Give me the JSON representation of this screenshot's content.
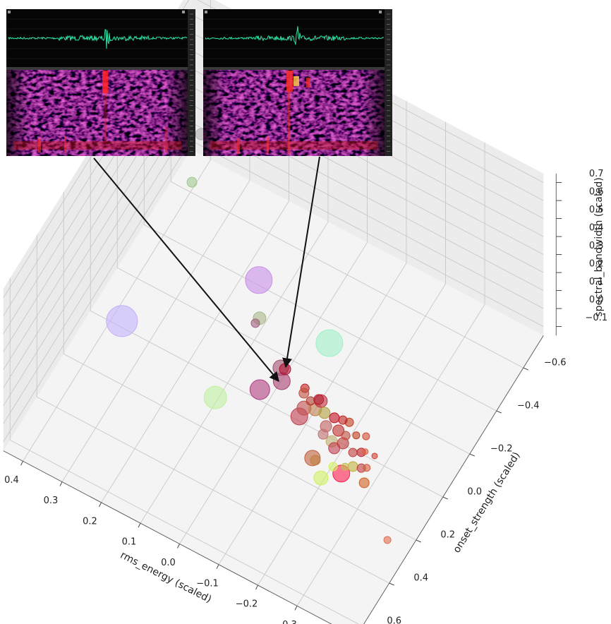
{
  "chart_data": {
    "type": "scatter3d",
    "x_label": "rms_energy (scaled)",
    "y_label": "onset_strength (scaled)",
    "z_label": "spectral_bandwidth (scaled)",
    "xlim": [
      -0.45,
      0.45
    ],
    "ylim": [
      -0.75,
      0.65
    ],
    "zlim": [
      -0.15,
      0.75
    ],
    "xticks": [
      {
        "value": -0.3,
        "label": "−0.3"
      },
      {
        "value": -0.2,
        "label": "−0.2"
      },
      {
        "value": -0.1,
        "label": "−0.1"
      },
      {
        "value": 0,
        "label": "0.0"
      },
      0.1,
      0.2,
      0.3,
      0.4
    ],
    "yticks": [
      {
        "value": -0.6,
        "label": "−0.6"
      },
      {
        "value": -0.4,
        "label": "−0.4"
      },
      {
        "value": -0.2,
        "label": "−0.2"
      },
      {
        "value": 0,
        "label": "0.0"
      },
      0.2,
      0.4,
      0.6
    ],
    "zticks": [
      {
        "value": -0.1,
        "label": "−0.1"
      },
      {
        "value": 0,
        "label": "0.0"
      },
      0.1,
      0.2,
      0.3,
      0.4,
      0.5,
      0.6,
      0.7
    ],
    "grid": true,
    "x": [
      0.345,
      0.131,
      -0.08,
      0.074,
      -0.002,
      -0.034,
      -0.016,
      -0.026,
      0.084,
      0.086,
      0.269,
      0.287,
      -0.259,
      -0.225,
      -0.185,
      -0.314,
      -0.427,
      -0.11,
      -0.109,
      -0.132,
      -0.133,
      -0.087,
      -0.091,
      -0.154,
      -0.179,
      -0.173,
      -0.202,
      -0.215,
      -0.226,
      -0.177,
      -0.202,
      -0.213,
      -0.256,
      -0.272,
      -0.235,
      -0.273,
      -0.291,
      -0.301,
      -0.302,
      -0.262,
      -0.242,
      -0.222,
      -0.113,
      -0.127,
      -0.258,
      -0.193,
      -0.279,
      -0.198
    ],
    "y": [
      0.072,
      -0.324,
      -0.234,
      0.167,
      0.057,
      -0.013,
      -0.058,
      -0.061,
      -0.192,
      -0.167,
      -0.228,
      -0.35,
      0.2,
      0.253,
      0.199,
      0.19,
      0.347,
      0.078,
      0.04,
      0.024,
      -0.016,
      -0.031,
      -0.012,
      0.019,
      0.018,
      0.063,
      0.105,
      0.124,
      0.091,
      0.096,
      0.055,
      0.006,
      0.105,
      0.089,
      0.191,
      0.154,
      0.144,
      0.133,
      0.077,
      0.024,
      0.039,
      0.059,
      0.003,
      -0.017,
      0.169,
      0.201,
      0.079,
      0.01
    ],
    "z": [
      0,
      0,
      0,
      0,
      0,
      0,
      0,
      0,
      0,
      0,
      0.5,
      0.6,
      0,
      0,
      0,
      0,
      0,
      0,
      0,
      0,
      0,
      0,
      0,
      0,
      0,
      0,
      0,
      0,
      0,
      0,
      0,
      0,
      0,
      0,
      0,
      0,
      0,
      0,
      0,
      0,
      0,
      0,
      0,
      0,
      0,
      0,
      0,
      0
    ],
    "sizes": [
      22,
      19,
      19,
      16,
      14,
      12,
      11,
      8,
      9,
      6,
      7,
      8,
      12,
      10,
      11,
      7,
      5,
      12,
      10,
      9,
      9,
      6,
      7,
      8,
      7,
      8,
      8,
      8,
      8,
      7,
      8,
      6,
      6,
      6,
      6,
      7,
      6,
      5,
      4,
      5,
      5,
      6,
      6,
      7,
      5,
      7,
      4,
      6
    ],
    "colors": [
      "#c4b0fa",
      "#c890e8",
      "#a0f0c8",
      "#c0f0a0",
      "#b04080",
      "#a84070",
      "#a05070",
      "#b01030",
      "#a8b888",
      "#a06080",
      "#a0c890",
      "#b0b0b0",
      "#ff2050",
      "#d0f060",
      "#c06040",
      "#d06020",
      "#e07050",
      "#c04050",
      "#c05050",
      "#c08050",
      "#c03040",
      "#c02020",
      "#c05040",
      "#b0a040",
      "#c01020",
      "#c06060",
      "#c0b070",
      "#c04050",
      "#c04040",
      "#c07070",
      "#c03030",
      "#c04020",
      "#c04040",
      "#c02020",
      "#d0f060",
      "#c0b040",
      "#c04040",
      "#d06040",
      "#d04030",
      "#d05030",
      "#c04020",
      "#c05040",
      "#b04030",
      "#b02030",
      "#c0c050",
      "#c08040",
      "#e06040",
      "#c02020"
    ]
  }
}
